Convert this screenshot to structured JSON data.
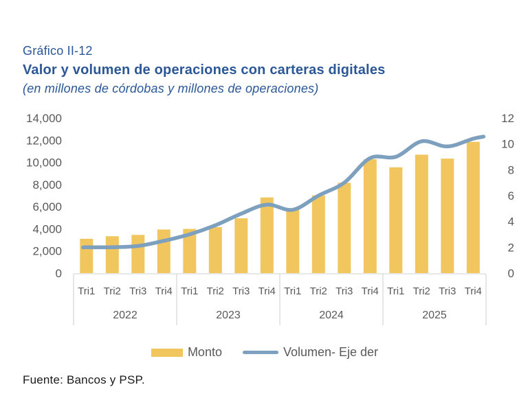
{
  "header": {
    "figure_number": "Gráfico II-12",
    "title": "Valor y volumen de operaciones con carteras digitales",
    "subtitle": "(en millones de córdobas y millones de operaciones)"
  },
  "footer": {
    "source": "Fuente: Bancos y PSP."
  },
  "colors": {
    "title_text": "#2B5797",
    "bar_fill": "#F2C65F",
    "line_stroke": "#7DA0BE",
    "axis_text": "#595959",
    "axis_line": "#D9D9D9",
    "source_text": "#1A1A1A"
  },
  "chart_data": {
    "type": "bar+line",
    "title": "Valor y volumen de operaciones con carteras digitales",
    "subtitle": "(en millones de córdobas y millones de operaciones)",
    "years": [
      "2022",
      "2023",
      "2024",
      "2025"
    ],
    "quarters_per_year": [
      "Tri1",
      "Tri2",
      "Tri3",
      "Tri4"
    ],
    "categories": [
      "2022 Tri1",
      "2022 Tri2",
      "2022 Tri3",
      "2022 Tri4",
      "2023 Tri1",
      "2023 Tri2",
      "2023 Tri3",
      "2023 Tri4",
      "2024 Tri1",
      "2024 Tri2",
      "2024 Tri3",
      "2024 Tri4",
      "2025 Tri1",
      "2025 Tri2",
      "2025 Tri3",
      "2025 Tri4"
    ],
    "series": [
      {
        "name": "Monto",
        "type": "bar",
        "axis": "left",
        "color": "#F2C65F",
        "values": [
          3100,
          3330,
          3450,
          3940,
          3990,
          4150,
          4950,
          6830,
          5790,
          7020,
          8150,
          10280,
          9550,
          10690,
          10340,
          11850
        ]
      },
      {
        "name": "Volumen- Eje der",
        "type": "line",
        "axis": "right",
        "color": "#7DA0BE",
        "values": [
          2.0,
          2.0,
          2.1,
          2.5,
          3.0,
          3.7,
          4.6,
          5.3,
          4.9,
          6.0,
          7.0,
          8.9,
          9.0,
          10.2,
          9.8,
          10.4
        ]
      }
    ],
    "left_axis": {
      "min": 0,
      "max": 14000,
      "step": 2000
    },
    "right_axis": {
      "min": 0,
      "max": 12,
      "step": 2
    },
    "grid": false,
    "legend_position": "bottom"
  }
}
